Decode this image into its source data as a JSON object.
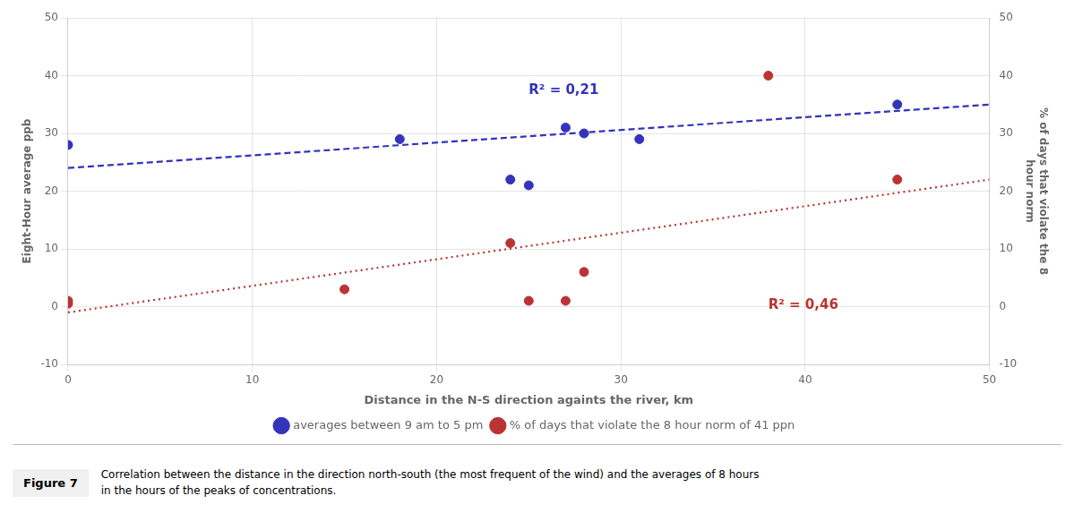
{
  "chart_data": {
    "type": "scatter",
    "x_label": "Distance in the N-S direction againts the river, km",
    "y_label": "Eight-Hour average ppb",
    "y2_label": "% of days that violate the 8\nhour norm",
    "series": [
      {
        "name": "averages between 9 am to 5 pm",
        "color": "#3333BB",
        "marker": "circle",
        "x": [
          0,
          18,
          24,
          25,
          27,
          28,
          31,
          45
        ],
        "values": [
          28,
          29,
          22,
          21,
          31,
          30,
          29,
          35
        ],
        "trendline": {
          "x": [
            0,
            50
          ],
          "values": [
            24,
            35
          ],
          "line_style": "dashed"
        }
      },
      {
        "name": "% of days that violate the 8 hour norm of 41 ppn",
        "color": "#BB3333",
        "marker": "circle",
        "x": [
          0,
          0,
          15,
          24,
          25,
          27,
          28,
          38,
          45
        ],
        "values": [
          1,
          0.5,
          3,
          11,
          1,
          1,
          6,
          40,
          22
        ],
        "trendline": {
          "x": [
            0,
            50
          ],
          "values": [
            -1,
            22
          ],
          "line_style": "dotted"
        }
      }
    ],
    "annotations": [
      {
        "text": "R² = 0,21",
        "color": "#3333BB"
      },
      {
        "text": "R² = 0,46",
        "color": "#BB3333"
      }
    ],
    "xlim": [
      0,
      50
    ],
    "xticks": [
      0,
      10,
      20,
      30,
      40,
      50
    ],
    "ylim": [
      -10,
      50
    ],
    "yticks": [
      -10,
      0,
      10,
      20,
      30,
      40,
      50
    ],
    "y2lim": [
      -10,
      50
    ],
    "y2ticks": [
      -10,
      0,
      10,
      20,
      30,
      40,
      50
    ],
    "grid": true,
    "legend": "bottom",
    "caption": {
      "label": "Figure 7",
      "text": "Correlation between the distance in the direction north-south (the most frequent of the wind) and the averages of 8 hours\nin the hours of the peaks of concentrations."
    }
  }
}
